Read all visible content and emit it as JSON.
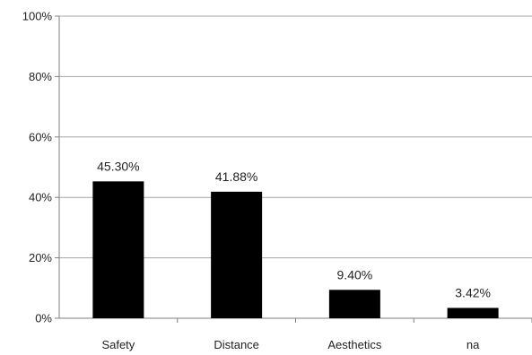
{
  "chart_data": {
    "type": "bar",
    "categories": [
      "Safety",
      "Distance",
      "Aesthetics",
      "na"
    ],
    "values": [
      45.3,
      41.88,
      9.4,
      3.42
    ],
    "data_labels": [
      "45.30%",
      "41.88%",
      "9.40%",
      "3.42%"
    ],
    "title": "",
    "xlabel": "",
    "ylabel": "",
    "ylim": [
      0,
      100
    ],
    "yticks": [
      0,
      20,
      40,
      60,
      80,
      100
    ],
    "ytick_labels": [
      "0%",
      "20%",
      "40%",
      "60%",
      "80%",
      "100%"
    ],
    "grid": true,
    "legend": "none",
    "colors": {
      "bar": "#000000",
      "grid": "#a6a6a6",
      "axis": "#7f7f7f",
      "text": "#222222"
    }
  }
}
